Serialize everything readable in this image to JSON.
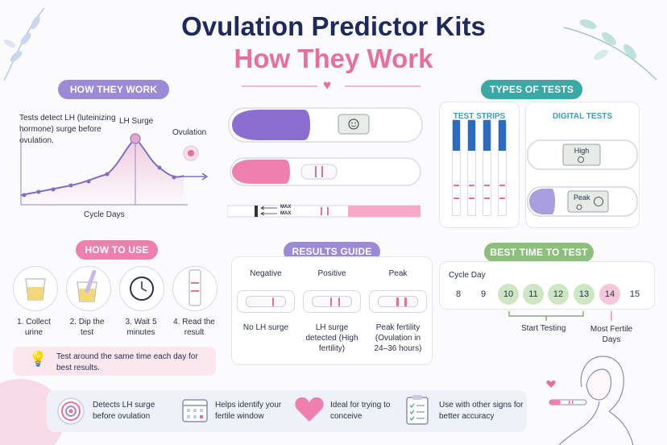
{
  "title": {
    "line1": "Ovulation Predictor Kits",
    "line2": "How They Work"
  },
  "how_they_work": {
    "label": "HOW THEY WORK",
    "description": "Tests detect LH (luteinizing hormone) surge before ovulation.",
    "lh_surge_label": "LH Surge",
    "ovulation_label": "Ovulation",
    "x_axis_label": "Cycle Days"
  },
  "types_of_tests": {
    "label": "TYPES OF TESTS",
    "strips_title": "TEST STRIPS",
    "digital_title": "DIGITAL TESTS",
    "digital_readouts": [
      "High",
      "Peak"
    ],
    "strip_max_labels": [
      "MAX",
      "MAX"
    ]
  },
  "how_to_use": {
    "label": "HOW TO USE",
    "steps": [
      "1. Collect urine",
      "2. Dip the test",
      "3. Wait 5 minutes",
      "4. Read the result"
    ],
    "tip": "Test around the same time each day for best results."
  },
  "results_guide": {
    "label": "RESULTS GUIDE",
    "columns": [
      {
        "heading": "Negative",
        "text": "No LH surge"
      },
      {
        "heading": "Positive",
        "text": "LH surge detected (High fertility)"
      },
      {
        "heading": "Peak",
        "text": "Peak fertility (Ovulation in 24–36 hours)"
      }
    ]
  },
  "best_time": {
    "label": "BEST TIME TO TEST",
    "cycle_day_label": "Cycle Day",
    "days": [
      "8",
      "9",
      "10",
      "11",
      "12",
      "13",
      "14",
      "15"
    ],
    "start_testing_label": "Start Testing",
    "most_fertile_label": "Most Fertile Days"
  },
  "benefits": [
    {
      "icon": "target-icon",
      "text": "Detects LH surge before ovulation"
    },
    {
      "icon": "calendar-icon",
      "text": "Helps identify your fertile window"
    },
    {
      "icon": "heart-icon",
      "text": "Ideal for trying to conceive"
    },
    {
      "icon": "checklist-icon",
      "text": "Use with other signs for better accuracy"
    }
  ],
  "colors": {
    "navy": "#1f2a5c",
    "pink": "#e86f9c",
    "purple": "#9b8ad6",
    "teal": "#3aa8a4",
    "green": "#8cc07a"
  }
}
